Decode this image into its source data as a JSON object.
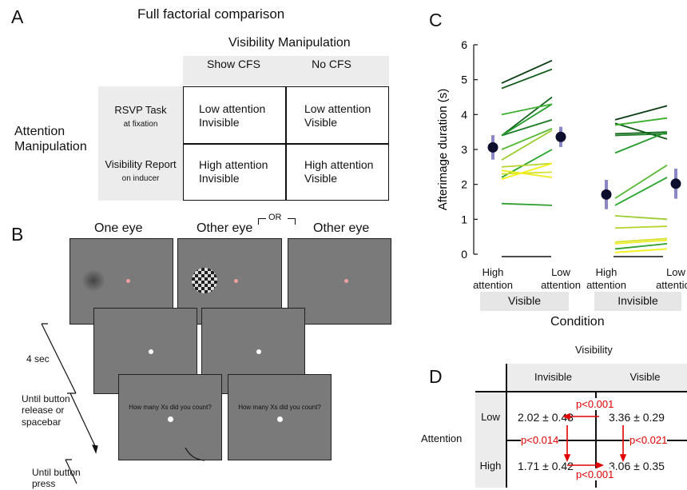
{
  "panel_a": {
    "letter": "A",
    "title": "Full factorial comparison",
    "column_title": "Visibility Manipulation",
    "columns": [
      "Show CFS",
      "No CFS"
    ],
    "row_title": "Attention Manipulation",
    "rows": [
      {
        "label": "RSVP Task",
        "sublabel": "at fixation"
      },
      {
        "label": "Visibility Report",
        "sublabel": "on inducer"
      }
    ],
    "cells": [
      [
        "Low attention Invisible",
        "Low attention Visible"
      ],
      [
        "High attention Invisible",
        "High attention Visible"
      ]
    ]
  },
  "panel_b": {
    "letter": "B",
    "eyes": [
      "One eye",
      "Other eye",
      "Other eye"
    ],
    "or": "OR",
    "question": "How many Xs did you count?",
    "timings": [
      "4 sec",
      "Until button release or spacebar",
      "Until button press"
    ]
  },
  "chart_data": {
    "type": "slope",
    "letter": "C",
    "ylabel": "Afterimage duration (s)",
    "xlabel": "Condition",
    "categories": [
      "High attention",
      "Low attention",
      "High attention",
      "Low attention"
    ],
    "groups": [
      "Visible",
      "Invisible"
    ],
    "ylim": [
      0,
      6
    ],
    "yticks": [
      0,
      1,
      2,
      3,
      4,
      5,
      6
    ],
    "means": [
      3.06,
      3.36,
      1.71,
      2.02
    ],
    "errors": [
      0.35,
      0.29,
      0.42,
      0.43
    ],
    "mean_color": "#0d0d2e",
    "error_color": "#8a87c4",
    "series": [
      {
        "color": "#0a3d10",
        "values": [
          4.9,
          5.55,
          3.85,
          4.25
        ]
      },
      {
        "color": "#0f5a18",
        "values": [
          4.75,
          5.3,
          3.75,
          3.3
        ]
      },
      {
        "color": "#12661c",
        "values": [
          3.4,
          4.5,
          3.45,
          3.5
        ]
      },
      {
        "color": "#1a7a22",
        "values": [
          3.4,
          3.85,
          3.4,
          3.45
        ]
      },
      {
        "color": "#239a2a",
        "values": [
          3.4,
          4.3,
          2.9,
          3.5
        ]
      },
      {
        "color": "#3cb02e",
        "values": [
          4.0,
          4.3,
          3.7,
          3.9
        ]
      },
      {
        "color": "#55b832",
        "values": [
          3.0,
          3.6,
          1.6,
          2.55
        ]
      },
      {
        "color": "#27a52c",
        "values": [
          2.2,
          3.0,
          1.4,
          2.2
        ]
      },
      {
        "color": "#2fa030",
        "values": [
          1.45,
          1.4,
          0.15,
          0.3
        ]
      },
      {
        "color": "#9ccc30",
        "values": [
          2.7,
          3.55,
          1.1,
          1.0
        ]
      },
      {
        "color": "#b5d52e",
        "values": [
          2.5,
          2.6,
          0.75,
          0.8
        ]
      },
      {
        "color": "#d6e22a",
        "values": [
          2.3,
          2.35,
          0.35,
          0.45
        ]
      },
      {
        "color": "#ecec20",
        "values": [
          2.4,
          2.2,
          0.3,
          0.4
        ]
      },
      {
        "color": "#f4f018",
        "values": [
          2.15,
          2.6,
          0.05,
          0.15
        ]
      }
    ]
  },
  "panel_d": {
    "letter": "D",
    "column_title": "Visibility",
    "columns": [
      "Invisible",
      "Visible"
    ],
    "row_title": "Attention",
    "rows": [
      "Low",
      "High"
    ],
    "cells": [
      [
        "2.02 ± 0.43",
        "3.36 ± 0.29"
      ],
      [
        "1.71 ± 0.42",
        "3.06 ± 0.35"
      ]
    ],
    "p_values": {
      "top": "p<0.001",
      "left": "p<0.014",
      "right": "p<0.021",
      "bottom": "p<0.001"
    }
  }
}
